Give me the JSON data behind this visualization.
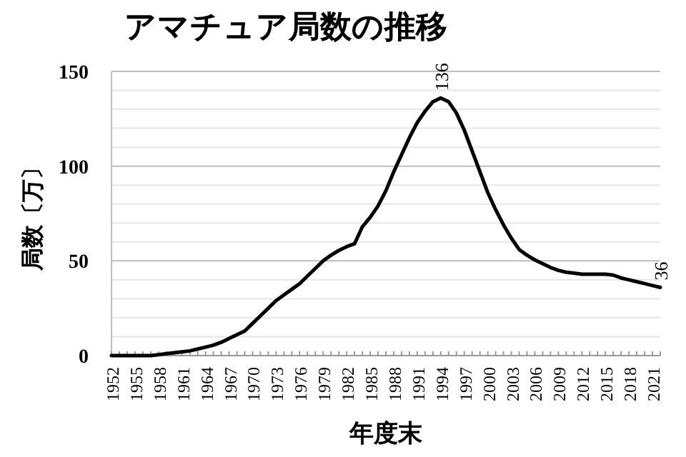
{
  "chart_data": {
    "type": "line",
    "title": "アマチュア局数の推移",
    "xlabel": "年度末",
    "ylabel": "局数〔万〕",
    "categories": [
      "1952",
      null,
      null,
      "1955",
      null,
      null,
      "1958",
      null,
      null,
      "1961",
      null,
      null,
      "1964",
      null,
      null,
      "1967",
      null,
      null,
      "1970",
      null,
      null,
      "1973",
      null,
      null,
      "1976",
      null,
      null,
      "1979",
      null,
      null,
      "1982",
      null,
      null,
      "1985",
      null,
      null,
      "1988",
      null,
      null,
      "1991",
      null,
      null,
      "1994",
      null,
      null,
      "1997",
      null,
      null,
      "2000",
      null,
      null,
      "2003",
      null,
      null,
      "2006",
      null,
      null,
      "2009",
      null,
      null,
      "2012",
      null,
      null,
      "2015",
      null,
      null,
      "2018",
      null,
      null,
      "2021",
      null
    ],
    "series": [
      {
        "color": "#000000",
        "values": [
          0,
          0,
          0,
          0,
          0,
          0,
          0.5,
          1,
          1.5,
          2,
          2.5,
          3.5,
          4.5,
          5.5,
          7,
          9,
          11,
          13,
          17,
          21,
          25,
          29,
          32,
          35,
          38,
          42,
          46,
          50,
          53,
          55.5,
          57.5,
          59,
          68,
          73,
          79,
          87,
          97,
          106,
          115,
          123,
          129,
          134,
          136,
          134,
          128,
          119,
          108,
          97,
          86,
          77,
          69,
          62,
          56,
          53,
          50.5,
          48.5,
          46.5,
          45,
          44,
          43.5,
          43,
          43,
          43,
          43,
          42.5,
          41,
          40,
          39,
          38,
          37,
          36
        ],
        "value_labels": [
          null,
          null,
          null,
          null,
          null,
          null,
          null,
          null,
          null,
          null,
          null,
          null,
          null,
          null,
          null,
          null,
          null,
          null,
          null,
          null,
          null,
          null,
          null,
          null,
          null,
          null,
          null,
          null,
          null,
          null,
          null,
          null,
          null,
          null,
          null,
          null,
          null,
          null,
          null,
          null,
          null,
          null,
          "136",
          null,
          null,
          null,
          null,
          null,
          null,
          null,
          null,
          null,
          null,
          null,
          null,
          null,
          null,
          null,
          null,
          null,
          null,
          null,
          null,
          null,
          null,
          null,
          null,
          null,
          null,
          null,
          "36"
        ]
      }
    ],
    "ylim": [
      0,
      150
    ],
    "yticks": [
      0,
      {
        "value": 10,
        "label": null
      },
      {
        "value": 20,
        "label": null
      },
      {
        "value": 30,
        "label": null
      },
      {
        "value": 40,
        "label": null
      },
      50,
      {
        "value": 60,
        "label": null
      },
      {
        "value": 70,
        "label": null
      },
      {
        "value": 80,
        "label": null
      },
      {
        "value": 90,
        "label": null
      },
      100,
      {
        "value": 110,
        "label": null
      },
      {
        "value": 120,
        "label": null
      },
      {
        "value": 130,
        "label": null
      },
      {
        "value": 140,
        "label": null
      },
      150
    ],
    "grid": "y",
    "marker": "none",
    "line_style": "solid"
  }
}
